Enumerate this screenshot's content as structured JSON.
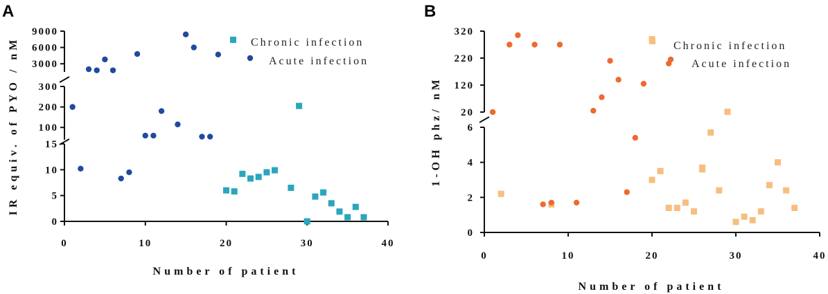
{
  "chart_data": [
    {
      "panel": "A",
      "type": "scatter",
      "xlabel": "Number of patient",
      "ylabel": "IR equiv. of PYO / nM",
      "xlim": [
        0,
        40
      ],
      "xticks": [
        "0",
        "10",
        "20",
        "30",
        "40"
      ],
      "ylim": [
        0,
        9000
      ],
      "y_axis_breaks": [
        [
          15,
          40
        ],
        [
          300,
          1500
        ]
      ],
      "yticks": [
        "0",
        "5",
        "10",
        "15",
        "100",
        "200",
        "300",
        "3000",
        "6000",
        "9000"
      ],
      "colors": {
        "chronic": "#2aa6bd",
        "acute": "#1f4aa0"
      },
      "series": [
        {
          "name": "Chronic infection",
          "marker": "square",
          "x": [
            20,
            21,
            22,
            23,
            24,
            25,
            26,
            28,
            29,
            30,
            31,
            32,
            33,
            34,
            35,
            36,
            37
          ],
          "y": [
            6,
            5.8,
            9.2,
            8.3,
            8.6,
            9.5,
            9.9,
            6.5,
            205,
            0,
            4.8,
            5.6,
            3.5,
            1.9,
            0.8,
            2.8,
            0.8
          ]
        },
        {
          "name": "Acute infection",
          "marker": "circle",
          "x": [
            1,
            2,
            3,
            4,
            5,
            6,
            7,
            8,
            9,
            10,
            11,
            12,
            14,
            15,
            16,
            17,
            18,
            19
          ],
          "y": [
            200,
            10.2,
            2000,
            1800,
            3800,
            1800,
            8.3,
            9.5,
            4800,
            60,
            60,
            180,
            115,
            8400,
            6000,
            55,
            55,
            4700
          ]
        }
      ],
      "extra_points": [
        {
          "series": "Chronic infection",
          "x": 21,
          "y": 7500
        },
        {
          "series": "Acute infection",
          "x": 23,
          "y": 3500
        }
      ]
    },
    {
      "panel": "B",
      "type": "scatter",
      "xlabel": "Number of patient",
      "ylabel": "1-OH phz/ nM",
      "xlim": [
        0,
        40
      ],
      "xticks": [
        "0",
        "10",
        "20",
        "30",
        "40"
      ],
      "ylim": [
        0,
        320
      ],
      "y_axis_breaks": [
        [
          6,
          20
        ]
      ],
      "yticks": [
        "0",
        "2",
        "4",
        "6",
        "20",
        "120",
        "220",
        "320"
      ],
      "colors": {
        "chronic": "#f7be7f",
        "acute": "#ee6a2e"
      },
      "series": [
        {
          "name": "Chronic infection",
          "marker": "square",
          "x": [
            2,
            8,
            20,
            20,
            21,
            22,
            23,
            24,
            25,
            26,
            27,
            28,
            29,
            30,
            31,
            32,
            33,
            34,
            35,
            36,
            37,
            26
          ],
          "y": [
            2.2,
            1.6,
            290,
            3.0,
            3.5,
            1.4,
            1.4,
            1.7,
            1.2,
            3.7,
            5.7,
            2.4,
            21,
            0.6,
            0.9,
            0.7,
            1.2,
            2.7,
            4.0,
            2.4,
            1.4,
            3.6
          ]
        },
        {
          "name": "Acute infection",
          "marker": "circle",
          "x": [
            1,
            3,
            4,
            6,
            7,
            8,
            9,
            11,
            13,
            14,
            15,
            16,
            17,
            18,
            19,
            22
          ],
          "y": [
            20,
            270,
            305,
            270,
            1.6,
            1.7,
            270,
            1.7,
            25,
            75,
            210,
            140,
            2.3,
            5.4,
            125,
            200
          ]
        }
      ]
    }
  ],
  "panelA": {
    "letter": "A",
    "legend": [
      "Chronic infection",
      "Acute infection"
    ]
  },
  "panelB": {
    "letter": "B",
    "legend": [
      "Chronic infection",
      "Acute infection"
    ]
  }
}
